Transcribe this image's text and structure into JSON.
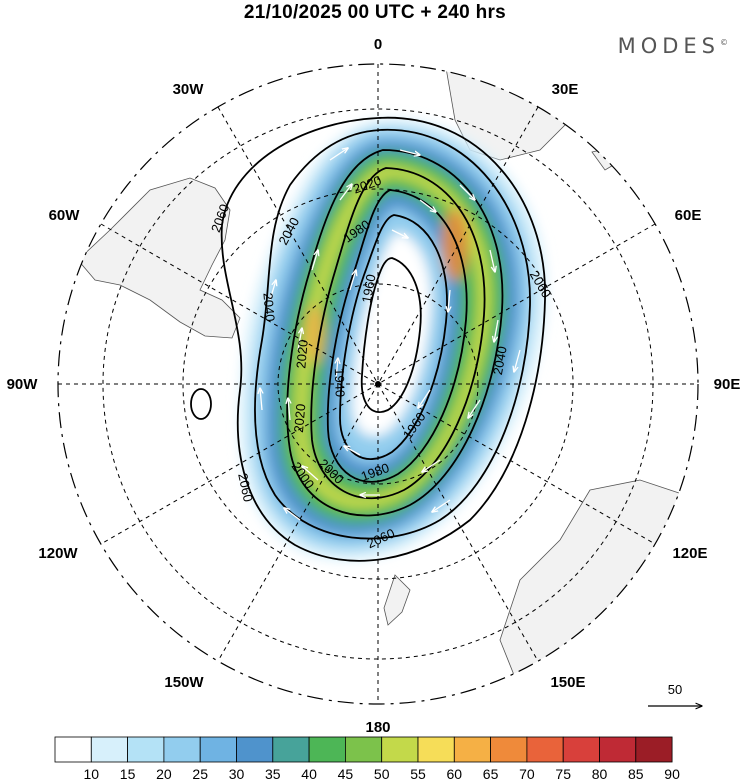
{
  "title": "21/10/2025  00 UTC  + 240 hrs",
  "brand": "MODES",
  "brand_mark": "©",
  "longitude_labels": [
    "0",
    "30E",
    "60E",
    "90E",
    "120E",
    "150E",
    "180",
    "150W",
    "120W",
    "90W",
    "60W",
    "30W"
  ],
  "contour_labels": [
    "2060",
    "2040",
    "2020",
    "1980",
    "1960",
    "1940",
    "2000",
    "2060",
    "2040",
    "2060",
    "2040",
    "2020",
    "2000",
    "1980",
    "1960",
    "2060",
    "2020"
  ],
  "vector_reference": {
    "label": "50"
  },
  "colorbar": {
    "ticks": [
      "10",
      "15",
      "20",
      "25",
      "30",
      "35",
      "40",
      "45",
      "50",
      "55",
      "60",
      "65",
      "70",
      "75",
      "80",
      "85",
      "90"
    ],
    "colors": [
      "#ffffff",
      "#d7f0fb",
      "#b4e2f6",
      "#92cdee",
      "#6fb3e3",
      "#4f93cc",
      "#47a39a",
      "#4db656",
      "#7cc24b",
      "#c3d94a",
      "#f6dd58",
      "#f5b045",
      "#ef8a3a",
      "#e9633a",
      "#d8403b",
      "#bf2a35",
      "#9b1d26"
    ]
  }
}
